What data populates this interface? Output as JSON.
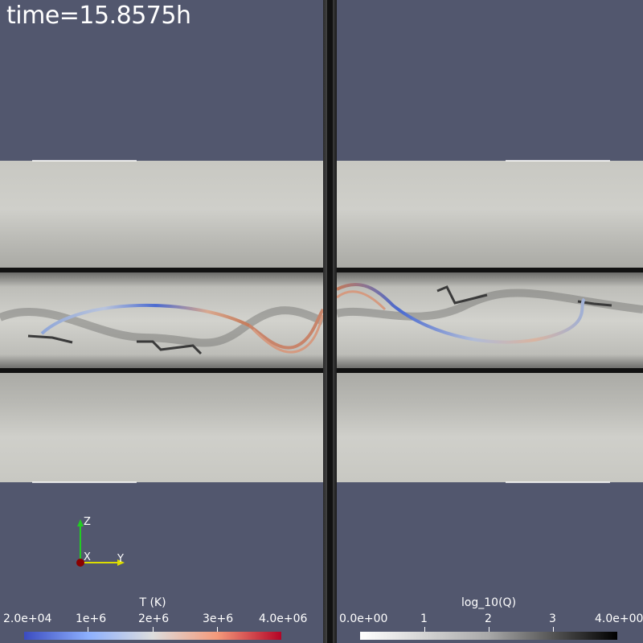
{
  "time_label": "time=15.8575h",
  "left_colorbar": {
    "title": "T (K)",
    "ticks": [
      "2.0e+04",
      "1e+6",
      "2e+6",
      "3e+6",
      "4.0e+06"
    ],
    "min_color": "#3b4cc0",
    "max_color": "#b40426"
  },
  "right_colorbar": {
    "title": "log_10(Q)",
    "ticks": [
      "0.0e+00",
      "1",
      "2",
      "3",
      "4.0e+00"
    ],
    "min_color": "#ffffff",
    "max_color": "#000000"
  },
  "axes": {
    "x_label": "X",
    "y_label": "Y",
    "z_label": "Z"
  },
  "colors": {
    "background": "#52576e",
    "slab": "#c9c9c3"
  }
}
